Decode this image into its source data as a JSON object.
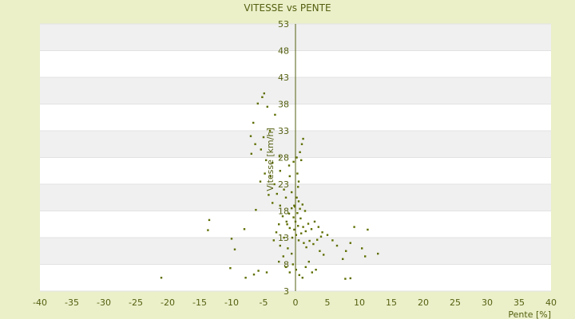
{
  "chart_data": {
    "type": "scatter",
    "title": "VITESSE vs PENTE",
    "xlabel": "Pente [%]",
    "ylabel": "Vitesse [km/h]",
    "xlim": [
      -40,
      40
    ],
    "ylim": [
      3,
      53
    ],
    "x_ticks": [
      "-40",
      "-35",
      "-30",
      "-25",
      "-20",
      "-15",
      "-10",
      "-5",
      "0",
      "5",
      "10",
      "15",
      "20",
      "25",
      "30",
      "35",
      "40"
    ],
    "y_ticks": [
      "3",
      "8",
      "13",
      "18",
      "23",
      "28",
      "33",
      "38",
      "43",
      "48",
      "53"
    ],
    "grid": true,
    "legend": "none",
    "colors": {
      "background": "#ebf0c9",
      "plot_band_light": "#ffffff",
      "plot_band_dark": "#f0f0f0",
      "axis": "#555f10",
      "marker": "#5f6e00"
    },
    "series": [
      {
        "points": [
          [
            -21.0,
            5.5
          ],
          [
            -13.5,
            16.3
          ],
          [
            -13.7,
            14.4
          ],
          [
            -10.0,
            12.8
          ],
          [
            -9.5,
            10.8
          ],
          [
            -10.2,
            7.3
          ],
          [
            -7.8,
            5.5
          ],
          [
            -8.0,
            14.6
          ],
          [
            -6.2,
            18.2
          ],
          [
            -6.5,
            6.1
          ],
          [
            -5.8,
            6.8
          ],
          [
            -4.5,
            6.5
          ],
          [
            -4.9,
            40.0
          ],
          [
            -5.2,
            39.3
          ],
          [
            -5.9,
            38.1
          ],
          [
            -4.4,
            37.5
          ],
          [
            -6.6,
            34.5
          ],
          [
            -7.0,
            32.0
          ],
          [
            -6.3,
            30.5
          ],
          [
            -5.0,
            31.8
          ],
          [
            -4.0,
            33.0
          ],
          [
            -3.2,
            36.0
          ],
          [
            -6.9,
            28.7
          ],
          [
            -5.4,
            29.5
          ],
          [
            -4.6,
            27.5
          ],
          [
            -3.6,
            27.0
          ],
          [
            -2.5,
            28.2
          ],
          [
            -4.8,
            25.0
          ],
          [
            -3.9,
            24.5
          ],
          [
            -3.3,
            23.0
          ],
          [
            -2.4,
            25.5
          ],
          [
            -5.5,
            23.5
          ],
          [
            -1.8,
            22.0
          ],
          [
            -2.9,
            21.2
          ],
          [
            -4.2,
            21.0
          ],
          [
            -3.6,
            19.5
          ],
          [
            -2.4,
            19.0
          ],
          [
            -1.5,
            20.5
          ],
          [
            -0.6,
            21.5
          ],
          [
            0.4,
            22.5
          ],
          [
            -0.9,
            24.5
          ],
          [
            0.3,
            25.0
          ],
          [
            1.0,
            30.5
          ],
          [
            1.2,
            31.5
          ],
          [
            0.7,
            29.0
          ],
          [
            0.2,
            28.0
          ],
          [
            -0.3,
            27.2
          ],
          [
            -1.0,
            26.5
          ],
          [
            0.9,
            27.5
          ],
          [
            0.5,
            23.5
          ],
          [
            0.2,
            20.5
          ],
          [
            -0.2,
            19.0
          ],
          [
            -0.6,
            18.5
          ],
          [
            -1.0,
            17.5
          ],
          [
            -1.4,
            16.0
          ],
          [
            -2.0,
            17.0
          ],
          [
            -2.6,
            15.5
          ],
          [
            -3.0,
            14.0
          ],
          [
            -3.4,
            12.5
          ],
          [
            -2.4,
            11.5
          ],
          [
            -1.8,
            13.0
          ],
          [
            -1.2,
            11.0
          ],
          [
            -0.6,
            10.0
          ],
          [
            -1.9,
            9.5
          ],
          [
            -2.6,
            8.5
          ],
          [
            -1.5,
            7.5
          ],
          [
            -0.9,
            6.5
          ],
          [
            -0.4,
            8.0
          ],
          [
            0.1,
            7.0
          ],
          [
            0.6,
            6.0
          ],
          [
            1.1,
            5.5
          ],
          [
            1.6,
            7.5
          ],
          [
            2.1,
            8.5
          ],
          [
            2.6,
            6.5
          ],
          [
            3.2,
            7.0
          ],
          [
            0.0,
            16.0
          ],
          [
            0.4,
            15.2
          ],
          [
            0.8,
            16.6
          ],
          [
            1.2,
            15.0
          ],
          [
            1.6,
            14.2
          ],
          [
            2.0,
            15.6
          ],
          [
            2.5,
            14.6
          ],
          [
            3.0,
            16.0
          ],
          [
            3.6,
            15.0
          ],
          [
            4.2,
            14.0
          ],
          [
            -0.2,
            14.5
          ],
          [
            0.1,
            13.5
          ],
          [
            0.5,
            12.5
          ],
          [
            0.9,
            13.8
          ],
          [
            1.3,
            12.0
          ],
          [
            1.7,
            11.2
          ],
          [
            2.2,
            12.4
          ],
          [
            2.8,
            11.8
          ],
          [
            3.4,
            12.6
          ],
          [
            4.0,
            13.2
          ],
          [
            -0.5,
            13.0
          ],
          [
            -0.9,
            14.8
          ],
          [
            -1.3,
            15.5
          ],
          [
            -0.3,
            16.8
          ],
          [
            0.3,
            17.6
          ],
          [
            0.7,
            18.4
          ],
          [
            1.1,
            19.2
          ],
          [
            1.5,
            18.0
          ],
          [
            -0.1,
            18.8
          ],
          [
            0.5,
            19.8
          ],
          [
            5.0,
            13.5
          ],
          [
            5.8,
            12.5
          ],
          [
            6.5,
            11.5
          ],
          [
            7.4,
            9.0
          ],
          [
            7.9,
            10.5
          ],
          [
            8.6,
            12.0
          ],
          [
            9.2,
            15.0
          ],
          [
            10.4,
            11.0
          ],
          [
            10.9,
            9.5
          ],
          [
            11.3,
            14.5
          ],
          [
            12.9,
            10.0
          ],
          [
            7.8,
            5.3
          ],
          [
            8.6,
            5.4
          ],
          [
            4.4,
            9.8
          ],
          [
            3.8,
            10.5
          ]
        ]
      }
    ]
  }
}
